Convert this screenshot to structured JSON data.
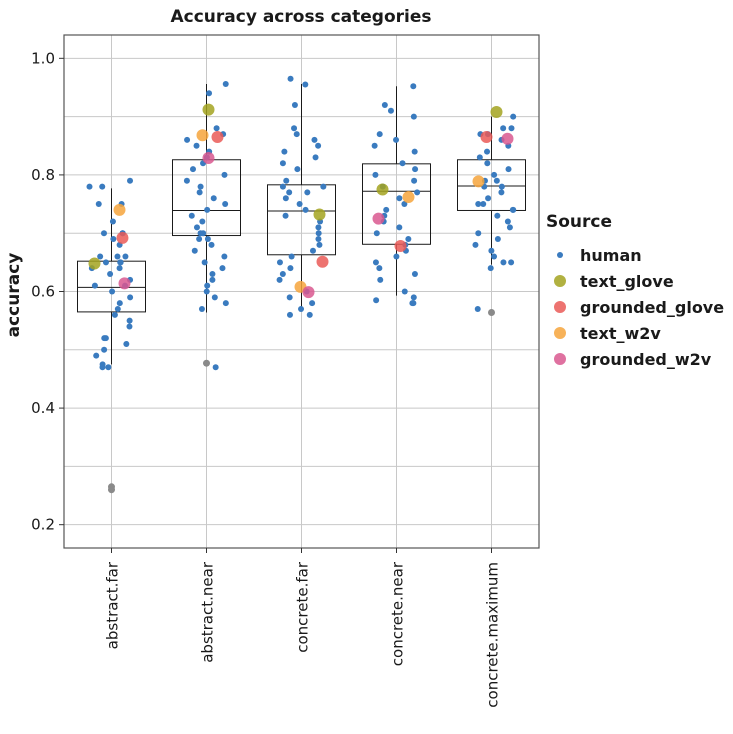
{
  "chart_data": {
    "type": "box",
    "title": "Accuracy across categories",
    "xlabel": "",
    "ylabel": "accuracy",
    "ylim": [
      0.16,
      1.04
    ],
    "yticks": [
      0.2,
      0.4,
      0.6,
      0.8,
      1.0
    ],
    "ytick_labels": [
      "0.2",
      "0.4",
      "0.6",
      "0.8",
      "1.0"
    ],
    "grid": true,
    "legend_position": "right",
    "legend_title": "Source",
    "colors": {
      "human": "#3a7bbf",
      "text_glove": "#a3a320",
      "grounded_glove": "#ea5b57",
      "text_w2v": "#f6a43c",
      "grounded_w2v": "#d9588f",
      "outlier": "#8a8a8a",
      "panel_border": "#555555",
      "grid": "#c8c8c8"
    },
    "categories": [
      "abstract.far",
      "abstract.near",
      "concrete.far",
      "concrete.near",
      "concrete.maximum"
    ],
    "boxes": [
      {
        "category": "abstract.far",
        "whisker_low": 0.475,
        "q1": 0.565,
        "median": 0.607,
        "q3": 0.652,
        "whisker_high": 0.777,
        "outliers": [
          0.26,
          0.265
        ]
      },
      {
        "category": "abstract.near",
        "whisker_low": 0.564,
        "q1": 0.696,
        "median": 0.739,
        "q3": 0.826,
        "whisker_high": 0.956,
        "outliers": [
          0.477
        ]
      },
      {
        "category": "concrete.far",
        "whisker_low": 0.572,
        "q1": 0.663,
        "median": 0.738,
        "q3": 0.783,
        "whisker_high": 0.956,
        "outliers": []
      },
      {
        "category": "concrete.near",
        "whisker_low": 0.593,
        "q1": 0.681,
        "median": 0.772,
        "q3": 0.819,
        "whisker_high": 0.952,
        "outliers": []
      },
      {
        "category": "concrete.maximum",
        "whisker_low": 0.646,
        "q1": 0.739,
        "median": 0.781,
        "q3": 0.826,
        "whisker_high": 0.9,
        "outliers": [
          0.564
        ]
      }
    ],
    "series": [
      {
        "name": "human",
        "points": [
          {
            "category": "abstract.far",
            "values": [
              0.78,
              0.79,
              0.78,
              0.75,
              0.75,
              0.72,
              0.7,
              0.7,
              0.7,
              0.69,
              0.68,
              0.66,
              0.66,
              0.66,
              0.65,
              0.65,
              0.65,
              0.64,
              0.64,
              0.63,
              0.62,
              0.61,
              0.61,
              0.6,
              0.59,
              0.58,
              0.57,
              0.56,
              0.55,
              0.54,
              0.52,
              0.52,
              0.51,
              0.5,
              0.49,
              0.475,
              0.47,
              0.47
            ]
          },
          {
            "category": "abstract.near",
            "values": [
              0.956,
              0.94,
              0.88,
              0.87,
              0.86,
              0.85,
              0.84,
              0.83,
              0.82,
              0.81,
              0.8,
              0.79,
              0.78,
              0.77,
              0.76,
              0.75,
              0.74,
              0.73,
              0.72,
              0.71,
              0.7,
              0.7,
              0.69,
              0.69,
              0.68,
              0.67,
              0.66,
              0.65,
              0.64,
              0.63,
              0.62,
              0.61,
              0.6,
              0.59,
              0.58,
              0.57,
              0.47
            ]
          },
          {
            "category": "concrete.far",
            "values": [
              0.965,
              0.955,
              0.92,
              0.88,
              0.87,
              0.86,
              0.85,
              0.84,
              0.83,
              0.82,
              0.81,
              0.79,
              0.78,
              0.78,
              0.77,
              0.77,
              0.76,
              0.75,
              0.74,
              0.73,
              0.72,
              0.71,
              0.7,
              0.69,
              0.68,
              0.67,
              0.66,
              0.65,
              0.64,
              0.63,
              0.62,
              0.6,
              0.59,
              0.58,
              0.57,
              0.56,
              0.56
            ]
          },
          {
            "category": "concrete.near",
            "values": [
              0.952,
              0.92,
              0.91,
              0.9,
              0.87,
              0.86,
              0.85,
              0.84,
              0.82,
              0.81,
              0.8,
              0.79,
              0.78,
              0.77,
              0.76,
              0.75,
              0.74,
              0.73,
              0.72,
              0.71,
              0.7,
              0.69,
              0.68,
              0.67,
              0.66,
              0.65,
              0.64,
              0.63,
              0.62,
              0.6,
              0.59,
              0.585,
              0.58,
              0.58
            ]
          },
          {
            "category": "concrete.maximum",
            "values": [
              0.9,
              0.88,
              0.88,
              0.87,
              0.87,
              0.86,
              0.85,
              0.84,
              0.83,
              0.82,
              0.81,
              0.8,
              0.79,
              0.79,
              0.78,
              0.78,
              0.77,
              0.76,
              0.75,
              0.75,
              0.74,
              0.74,
              0.73,
              0.72,
              0.71,
              0.7,
              0.69,
              0.68,
              0.67,
              0.66,
              0.65,
              0.65,
              0.64,
              0.57
            ]
          }
        ]
      },
      {
        "name": "text_glove",
        "values": [
          0.648,
          0.912,
          0.732,
          0.775,
          0.908
        ]
      },
      {
        "name": "grounded_glove",
        "values": [
          0.692,
          0.865,
          0.651,
          0.678,
          0.865
        ]
      },
      {
        "name": "text_w2v",
        "values": [
          0.74,
          0.868,
          0.608,
          0.762,
          0.789
        ]
      },
      {
        "name": "grounded_w2v",
        "values": [
          0.614,
          0.829,
          0.599,
          0.725,
          0.862
        ]
      }
    ]
  }
}
